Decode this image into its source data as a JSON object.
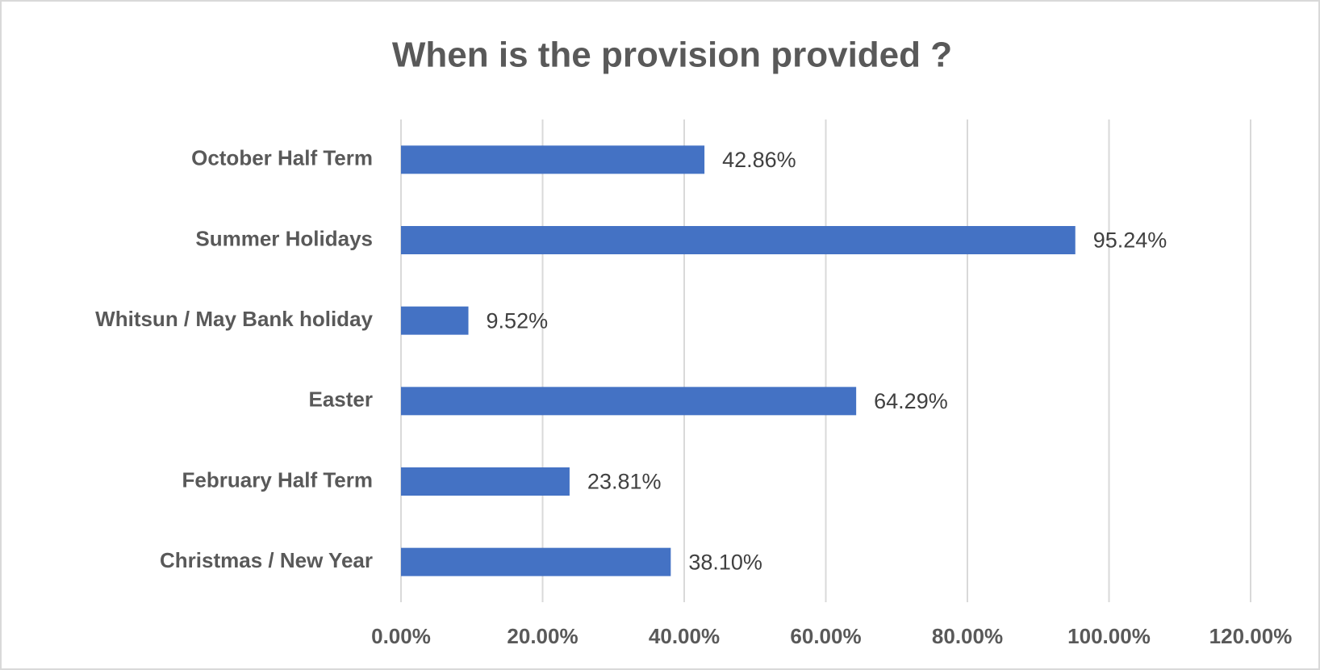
{
  "chart_data": {
    "type": "barh",
    "title": "When is the provision provided ?",
    "categories": [
      "October Half Term",
      "Summer Holidays",
      "Whitsun / May Bank holiday",
      "Easter",
      "February Half Term",
      "Christmas / New Year"
    ],
    "values": [
      42.86,
      95.24,
      9.52,
      64.29,
      23.81,
      38.1
    ],
    "value_labels": [
      "42.86%",
      "95.24%",
      "9.52%",
      "64.29%",
      "23.81%",
      "38.10%"
    ],
    "color": "#4472c4",
    "xlim": [
      0,
      120
    ],
    "xticks": [
      {
        "value": 0,
        "label": "0.00%"
      },
      {
        "value": 20,
        "label": "20.00%"
      },
      {
        "value": 40,
        "label": "40.00%"
      },
      {
        "value": 60,
        "label": "60.00%"
      },
      {
        "value": 80,
        "label": "80.00%"
      },
      {
        "value": 100,
        "label": "100.00%"
      },
      {
        "value": 120,
        "label": "120.00%"
      }
    ],
    "grid": true
  }
}
